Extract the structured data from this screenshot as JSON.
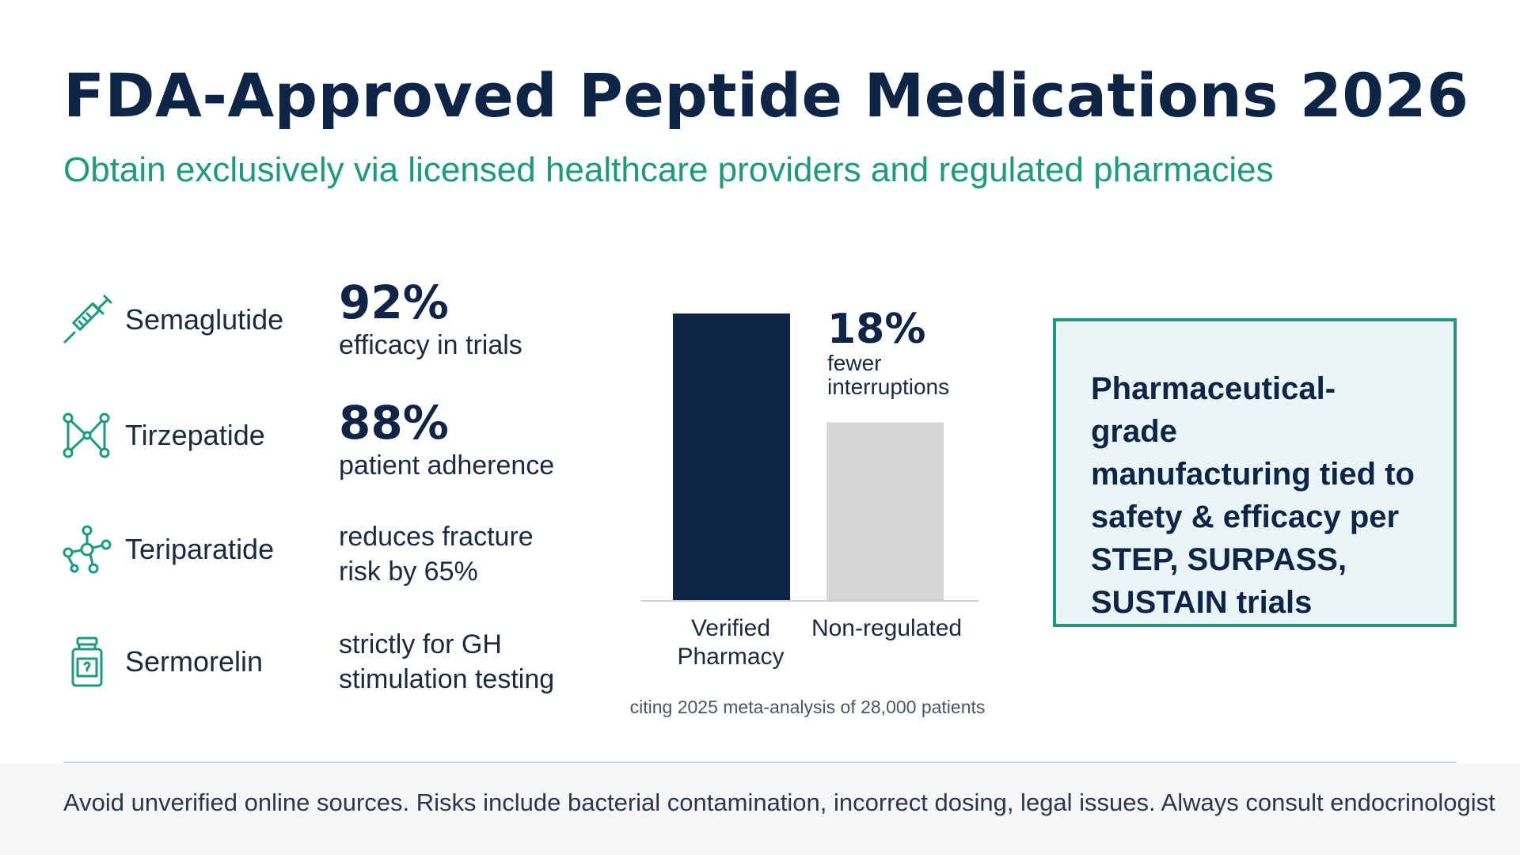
{
  "header": {
    "title": "FDA-Approved Peptide Medications 2026",
    "subtitle": "Obtain exclusively via licensed healthcare providers and regulated pharmacies"
  },
  "drugs": [
    {
      "name": "Semaglutide",
      "icon": "syringe-icon",
      "stat_big": "92%",
      "stat_text": "efficacy in trials"
    },
    {
      "name": "Tirzepatide",
      "icon": "molecule-icon",
      "stat_big": "88%",
      "stat_text": "patient adherence"
    },
    {
      "name": "Teriparatide",
      "icon": "molecule-chain-icon",
      "stat_lines": [
        "reduces fracture",
        "risk by 65%"
      ]
    },
    {
      "name": "Sermorelin",
      "icon": "vial-icon",
      "stat_lines": [
        "strictly for GH",
        "stimulation testing"
      ]
    }
  ],
  "chart_data": {
    "type": "bar",
    "categories": [
      "Verified Pharmacy",
      "Non-regulated"
    ],
    "category_lines": [
      [
        "Verified",
        "Pharmacy"
      ],
      [
        "Non-regulated"
      ]
    ],
    "values": [
      100,
      62
    ],
    "colors": [
      "#0f2547",
      "#d6d6d6"
    ],
    "ylim": [
      0,
      100
    ],
    "annotation": {
      "value": "18%",
      "text": "fewer interruptions",
      "lines": [
        "fewer",
        "interruptions"
      ]
    },
    "note": "citing 2025 meta-analysis of 28,000 patients"
  },
  "infobox": {
    "text": "Pharmaceutical-grade manufacturing tied to safety & efficacy per STEP, SURPASS, SUSTAIN trials",
    "lines": [
      "Pharmaceutical-grade",
      "manufacturing tied to",
      "safety & efficacy per",
      "STEP, SURPASS,",
      "SUSTAIN trials"
    ]
  },
  "footer": {
    "text": "Avoid unverified online sources. Risks include bacterial contamination, incorrect dosing, legal issues. Always consult endocrinologist"
  },
  "colors": {
    "navy": "#0f2547",
    "teal": "#1c9a7e",
    "gray_bar": "#d6d6d6",
    "box_bg": "#e9f6f5"
  }
}
